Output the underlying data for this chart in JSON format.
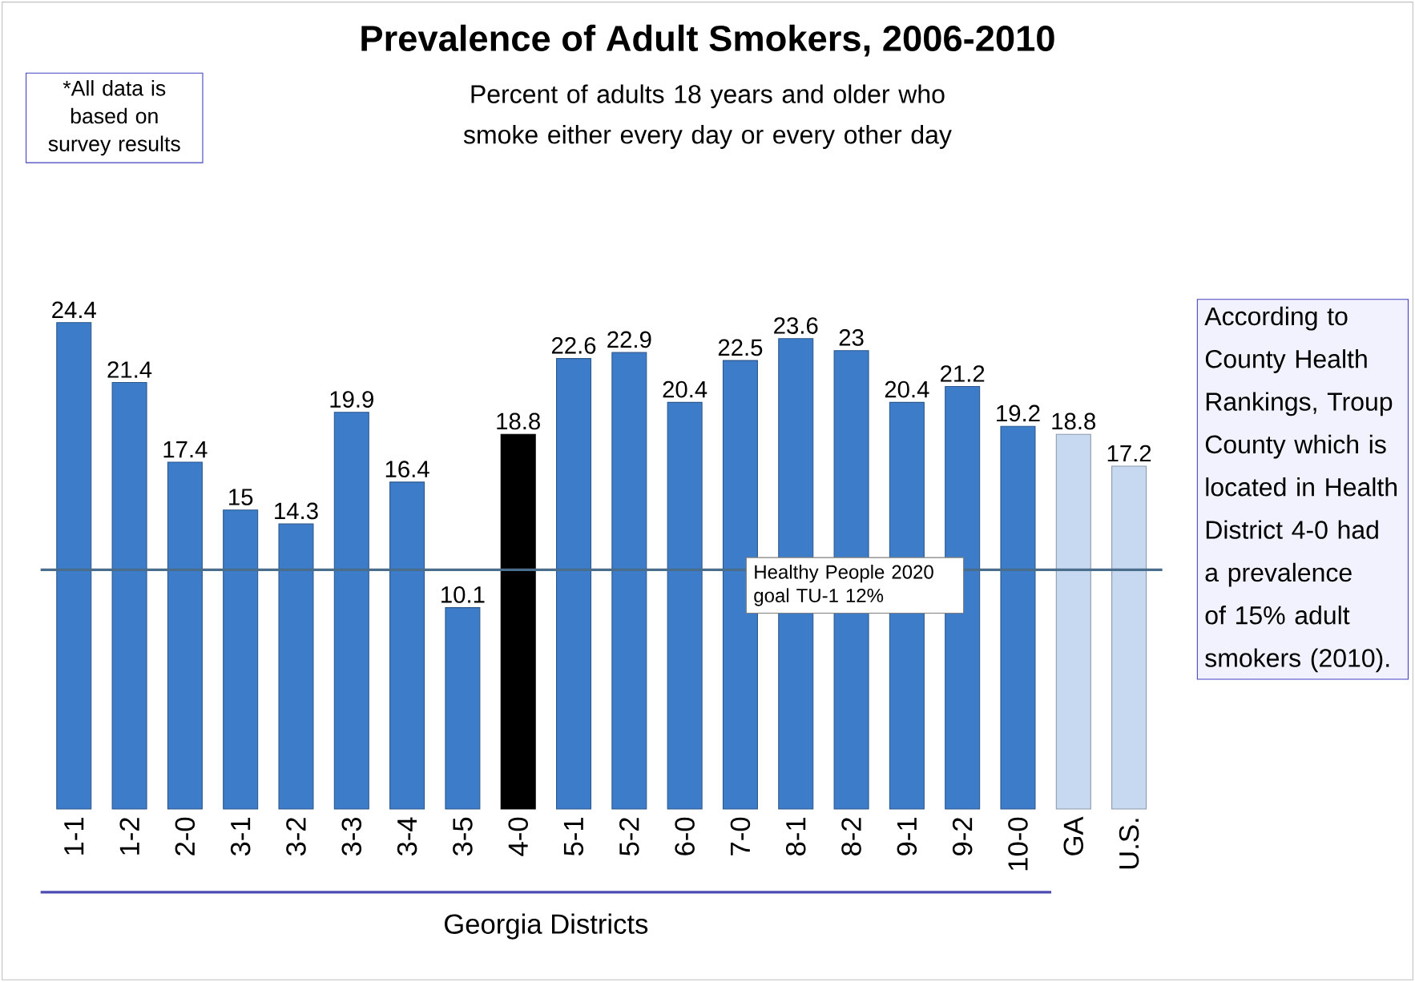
{
  "chart_data": {
    "type": "bar",
    "title": "Prevalence of Adult Smokers, 2006-2010",
    "subtitle": "Percent of adults 18 years and older who smoke either every day or every other day",
    "xlabel": "Georgia Districts",
    "categories": [
      "1-1",
      "1-2",
      "2-0",
      "3-1",
      "3-2",
      "3-3",
      "3-4",
      "3-5",
      "4-0",
      "5-1",
      "5-2",
      "6-0",
      "7-0",
      "8-1",
      "8-2",
      "9-1",
      "9-2",
      "10-0",
      "GA",
      "U.S."
    ],
    "values": [
      24.4,
      21.4,
      17.4,
      15,
      14.3,
      19.9,
      16.4,
      10.1,
      18.8,
      22.6,
      22.9,
      20.4,
      22.5,
      23.6,
      23,
      20.4,
      21.2,
      19.2,
      18.8,
      17.2
    ],
    "colors": [
      "#3d7cc9",
      "#3d7cc9",
      "#3d7cc9",
      "#3d7cc9",
      "#3d7cc9",
      "#3d7cc9",
      "#3d7cc9",
      "#3d7cc9",
      "#000000",
      "#3d7cc9",
      "#3d7cc9",
      "#3d7cc9",
      "#3d7cc9",
      "#3d7cc9",
      "#3d7cc9",
      "#3d7cc9",
      "#3d7cc9",
      "#3d7cc9",
      "#c6d9f1",
      "#c6d9f1"
    ],
    "data_labels": true,
    "ref_lines": [
      {
        "axis": "y",
        "value": 12,
        "label": "Healthy People 2020 goal TU-1 12%",
        "color": "#4a6d8c"
      }
    ],
    "annotations": [
      "*All data is based on survey results",
      "According to County Health Rankings, Troup County which is located in Health District 4-0 had a prevalence of 15% adult smokers (2010)."
    ]
  }
}
